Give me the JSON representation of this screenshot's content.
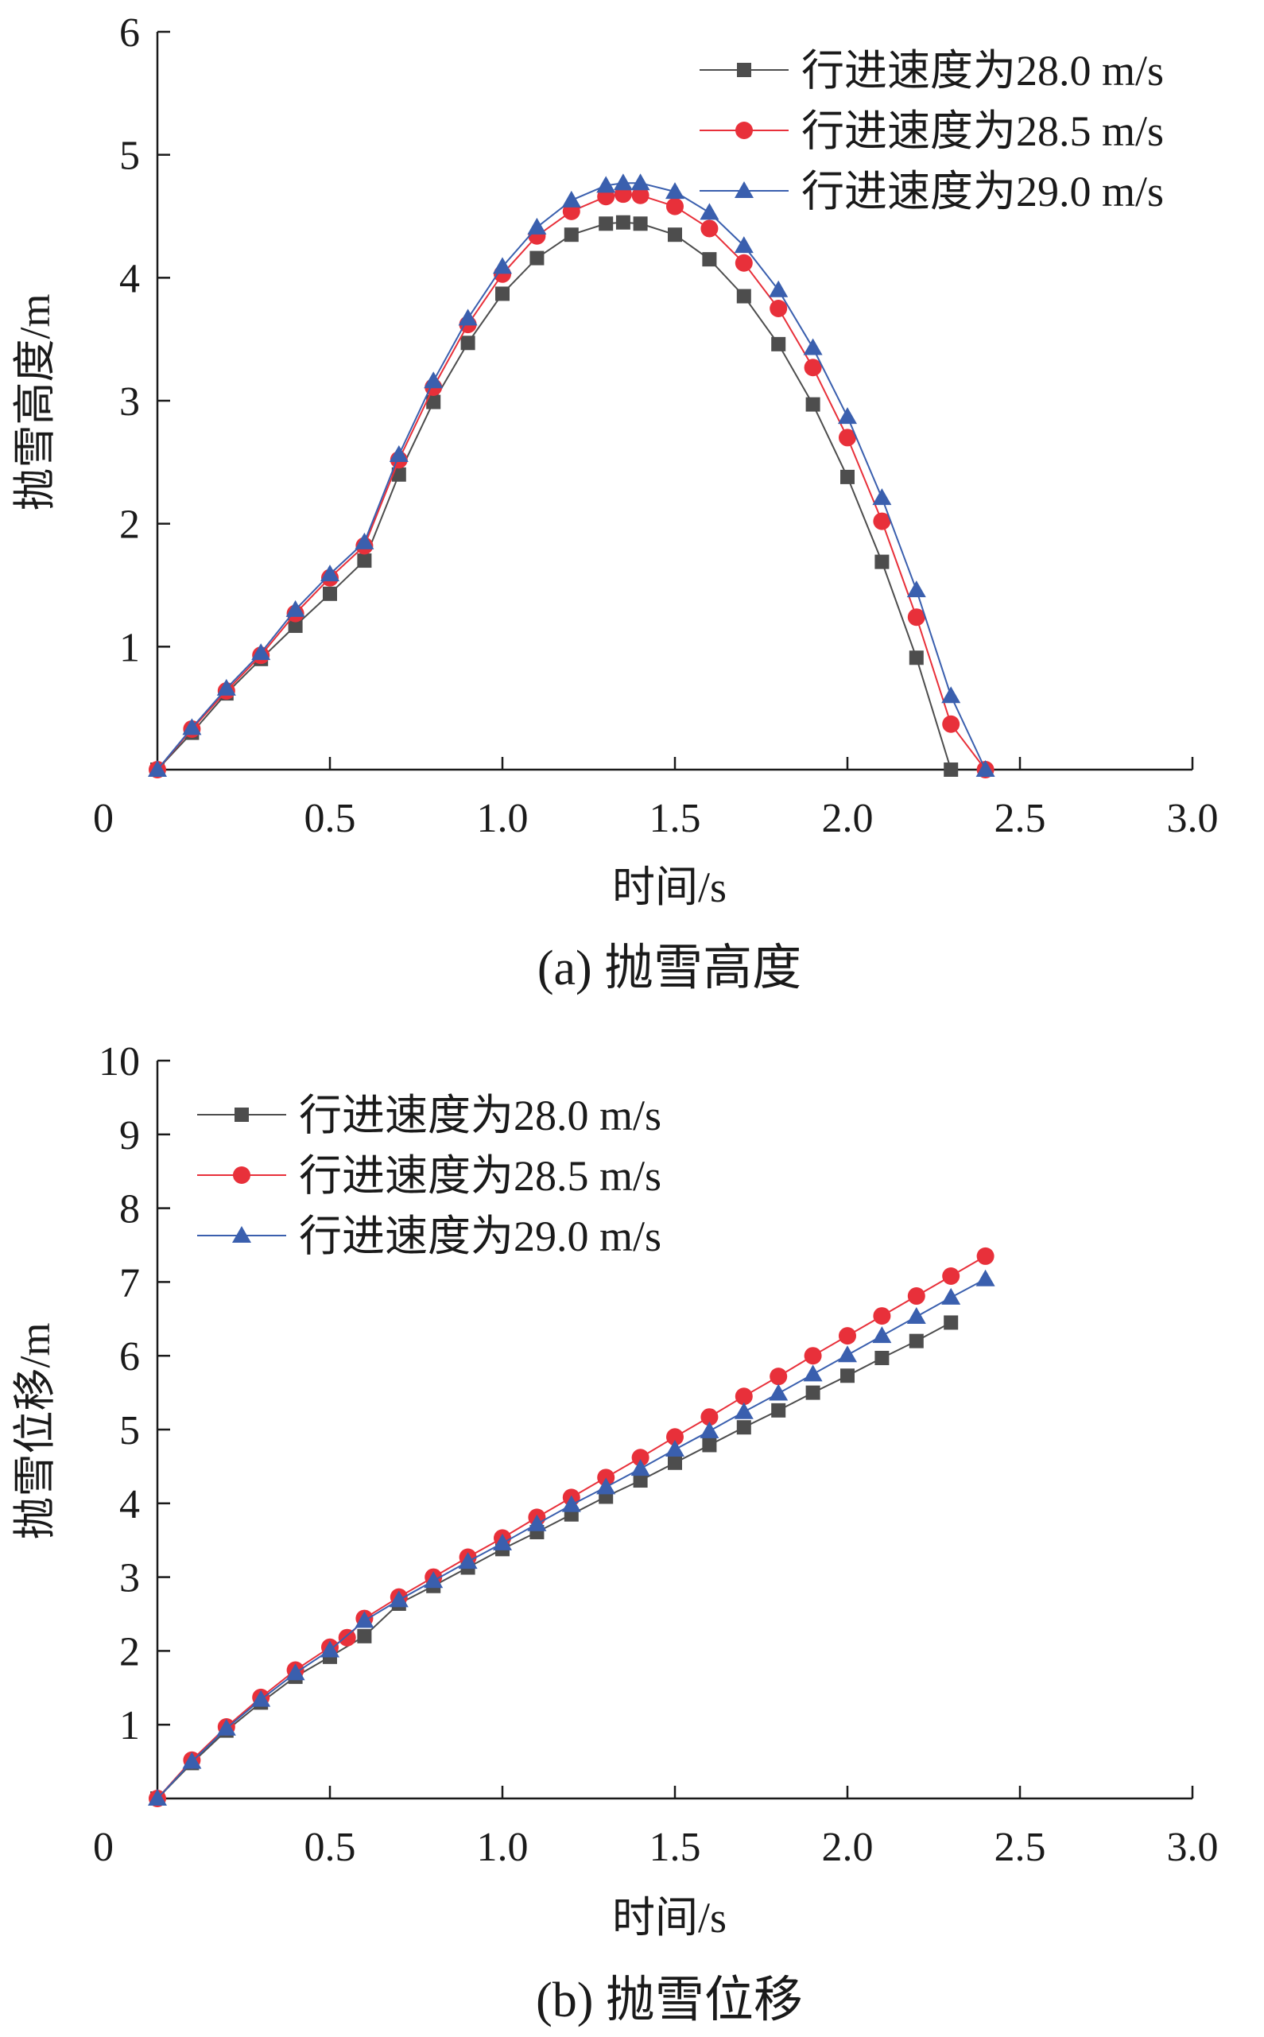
{
  "chart_data": [
    {
      "type": "line",
      "panel_label": "(a) 抛雪高度",
      "xlabel": "时间/s",
      "ylabel": "抛雪高度/m",
      "xlim": [
        0,
        3.0
      ],
      "ylim": [
        0,
        6
      ],
      "x_ticks": [
        "0",
        "0.5",
        "1.0",
        "1.5",
        "2.0",
        "2.5",
        "3.0"
      ],
      "y_ticks": [
        "1",
        "2",
        "3",
        "4",
        "5",
        "6"
      ],
      "legend_position": "top-right",
      "series": [
        {
          "name": "行进速度为28.0 m/s",
          "color": "#4d4d4d",
          "marker": "square",
          "x": [
            0,
            0.1,
            0.2,
            0.3,
            0.4,
            0.5,
            0.6,
            0.7,
            0.8,
            0.9,
            1.0,
            1.1,
            1.2,
            1.3,
            1.35,
            1.4,
            1.5,
            1.6,
            1.7,
            1.8,
            1.9,
            2.0,
            2.1,
            2.2,
            2.3
          ],
          "values": [
            0.0,
            0.3,
            0.62,
            0.9,
            1.17,
            1.43,
            1.7,
            2.4,
            2.99,
            3.47,
            3.87,
            4.16,
            4.35,
            4.44,
            4.45,
            4.44,
            4.35,
            4.15,
            3.85,
            3.46,
            2.97,
            2.38,
            1.69,
            0.91,
            0.0
          ]
        },
        {
          "name": "行进速度为28.5 m/s",
          "color": "#e8303a",
          "marker": "circle",
          "x": [
            0,
            0.1,
            0.2,
            0.3,
            0.4,
            0.5,
            0.6,
            0.7,
            0.8,
            0.9,
            1.0,
            1.1,
            1.2,
            1.3,
            1.35,
            1.4,
            1.5,
            1.6,
            1.7,
            1.8,
            1.9,
            2.0,
            2.1,
            2.2,
            2.3,
            2.4
          ],
          "values": [
            0.0,
            0.33,
            0.64,
            0.93,
            1.27,
            1.56,
            1.82,
            2.52,
            3.11,
            3.62,
            4.03,
            4.34,
            4.54,
            4.66,
            4.68,
            4.67,
            4.58,
            4.4,
            4.12,
            3.75,
            3.27,
            2.7,
            2.02,
            1.24,
            0.37,
            0.0
          ]
        },
        {
          "name": "行进速度为29.0 m/s",
          "color": "#3a5fae",
          "marker": "triangle",
          "x": [
            0,
            0.1,
            0.2,
            0.3,
            0.4,
            0.5,
            0.6,
            0.7,
            0.8,
            0.9,
            1.0,
            1.1,
            1.2,
            1.3,
            1.35,
            1.4,
            1.5,
            1.6,
            1.7,
            1.8,
            1.9,
            2.0,
            2.1,
            2.2,
            2.3,
            2.4
          ],
          "values": [
            0.0,
            0.34,
            0.66,
            0.95,
            1.3,
            1.59,
            1.85,
            2.56,
            3.16,
            3.67,
            4.09,
            4.41,
            4.63,
            4.75,
            4.77,
            4.77,
            4.7,
            4.53,
            4.26,
            3.9,
            3.43,
            2.87,
            2.21,
            1.46,
            0.6,
            0.0
          ]
        }
      ]
    },
    {
      "type": "line",
      "panel_label": "(b) 抛雪位移",
      "xlabel": "时间/s",
      "ylabel": "抛雪位移/m",
      "xlim": [
        0,
        3.0
      ],
      "ylim": [
        0,
        10
      ],
      "x_ticks": [
        "0",
        "0.5",
        "1.0",
        "1.5",
        "2.0",
        "2.5",
        "3.0"
      ],
      "y_ticks": [
        "1",
        "2",
        "3",
        "4",
        "5",
        "6",
        "7",
        "8",
        "9",
        "10"
      ],
      "legend_position": "top-left",
      "series": [
        {
          "name": "行进速度为28.0 m/s",
          "color": "#4d4d4d",
          "marker": "square",
          "x": [
            0,
            0.1,
            0.2,
            0.3,
            0.4,
            0.5,
            0.6,
            0.7,
            0.8,
            0.9,
            1.0,
            1.1,
            1.2,
            1.3,
            1.4,
            1.5,
            1.6,
            1.7,
            1.8,
            1.9,
            2.0,
            2.1,
            2.2,
            2.3
          ],
          "values": [
            0.0,
            0.48,
            0.92,
            1.3,
            1.65,
            1.92,
            2.2,
            2.64,
            2.88,
            3.13,
            3.38,
            3.61,
            3.85,
            4.09,
            4.31,
            4.55,
            4.79,
            5.03,
            5.26,
            5.5,
            5.73,
            5.97,
            6.2,
            6.45
          ]
        },
        {
          "name": "行进速度为28.5 m/s",
          "color": "#e8303a",
          "marker": "circle",
          "x": [
            0,
            0.1,
            0.2,
            0.3,
            0.4,
            0.5,
            0.55,
            0.6,
            0.7,
            0.8,
            0.9,
            1.0,
            1.1,
            1.2,
            1.3,
            1.4,
            1.5,
            1.6,
            1.7,
            1.8,
            1.9,
            2.0,
            2.1,
            2.2,
            2.3,
            2.4
          ],
          "values": [
            0.0,
            0.52,
            0.97,
            1.37,
            1.74,
            2.05,
            2.18,
            2.44,
            2.73,
            3.0,
            3.27,
            3.53,
            3.81,
            4.08,
            4.35,
            4.62,
            4.9,
            5.17,
            5.45,
            5.72,
            6.0,
            6.27,
            6.54,
            6.81,
            7.08,
            7.35
          ]
        },
        {
          "name": "行进速度为29.0 m/s",
          "color": "#3a5fae",
          "marker": "triangle",
          "x": [
            0,
            0.1,
            0.2,
            0.3,
            0.4,
            0.5,
            0.6,
            0.7,
            0.8,
            0.9,
            1.0,
            1.1,
            1.2,
            1.3,
            1.4,
            1.5,
            1.6,
            1.7,
            1.8,
            1.9,
            2.0,
            2.1,
            2.2,
            2.3,
            2.4
          ],
          "values": [
            0.0,
            0.5,
            0.95,
            1.34,
            1.7,
            2.01,
            2.41,
            2.69,
            2.95,
            3.21,
            3.46,
            3.72,
            3.98,
            4.22,
            4.47,
            4.73,
            4.98,
            5.24,
            5.49,
            5.75,
            6.01,
            6.27,
            6.53,
            6.79,
            7.04
          ]
        }
      ]
    }
  ]
}
